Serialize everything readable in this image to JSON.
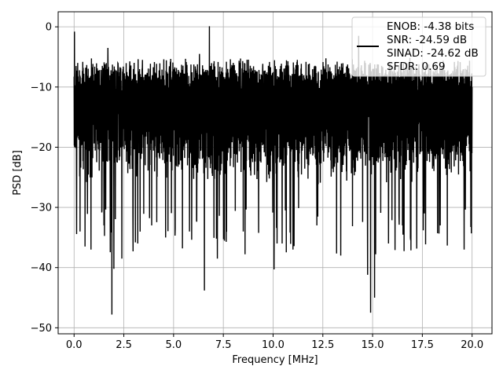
{
  "chart_data": {
    "type": "line",
    "xlabel": "Frequency [MHz]",
    "ylabel": "PSD [dB]",
    "xlim": [
      -0.8,
      21
    ],
    "ylim": [
      -51,
      2.5
    ],
    "xticks": [
      0.0,
      2.5,
      5.0,
      7.5,
      10.0,
      12.5,
      15.0,
      17.5,
      20.0
    ],
    "xtick_labels": [
      "0.0",
      "2.5",
      "5.0",
      "7.5",
      "10.0",
      "12.5",
      "15.0",
      "17.5",
      "20.0"
    ],
    "yticks": [
      0,
      -10,
      -20,
      -30,
      -40,
      -50
    ],
    "ytick_labels": [
      "0",
      "−10",
      "−20",
      "−30",
      "−40",
      "−50"
    ],
    "grid": true,
    "legend_position": "top-right",
    "legend": [
      "ENOB: -4.38 bits",
      "SNR: -24.59 dB",
      "SINAD: -24.62 dB",
      "SFDR: 0.69"
    ],
    "series_color": "#000000",
    "x_range": [
      0.0,
      20.0
    ],
    "band_top_approx": -7,
    "band_bottom_approx": -24,
    "notable_points": [
      {
        "x": 0.02,
        "y": -0.8
      },
      {
        "x": 0.05,
        "y": -10
      },
      {
        "x": 0.12,
        "y": -26
      },
      {
        "x": 0.3,
        "y": -34
      },
      {
        "x": 0.55,
        "y": -36.5
      },
      {
        "x": 0.85,
        "y": -37
      },
      {
        "x": 1.5,
        "y": -33
      },
      {
        "x": 1.7,
        "y": -3.5
      },
      {
        "x": 1.9,
        "y": -47.8
      },
      {
        "x": 2.0,
        "y": -40.2
      },
      {
        "x": 2.4,
        "y": -38.5
      },
      {
        "x": 3.2,
        "y": -36
      },
      {
        "x": 3.9,
        "y": -33
      },
      {
        "x": 4.6,
        "y": -35
      },
      {
        "x": 5.8,
        "y": -34
      },
      {
        "x": 6.3,
        "y": -4.5
      },
      {
        "x": 6.55,
        "y": -43.8
      },
      {
        "x": 6.8,
        "y": 0.1
      },
      {
        "x": 7.2,
        "y": -38.5
      },
      {
        "x": 8.5,
        "y": -34
      },
      {
        "x": 10.05,
        "y": -40.3
      },
      {
        "x": 10.2,
        "y": -36
      },
      {
        "x": 11.0,
        "y": -37
      },
      {
        "x": 12.2,
        "y": -33
      },
      {
        "x": 13.4,
        "y": -38
      },
      {
        "x": 14.3,
        "y": -1.5
      },
      {
        "x": 14.75,
        "y": -41.2
      },
      {
        "x": 14.9,
        "y": -47.5
      },
      {
        "x": 15.1,
        "y": -45
      },
      {
        "x": 15.8,
        "y": -36
      },
      {
        "x": 16.5,
        "y": -33
      },
      {
        "x": 16.9,
        "y": -35
      },
      {
        "x": 17.6,
        "y": -31
      },
      {
        "x": 18.4,
        "y": -33
      },
      {
        "x": 19.6,
        "y": -37
      },
      {
        "x": 19.9,
        "y": -24
      },
      {
        "x": 20.0,
        "y": -10
      }
    ]
  }
}
